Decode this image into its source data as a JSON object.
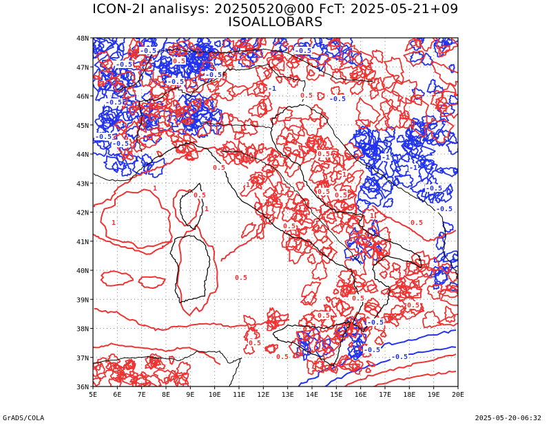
{
  "title_line1": "ICON-2I analisys: 20250520@00 FcT: 2025-05-21+09",
  "title_line2": "ISOALLOBARS",
  "lat_ticks": [
    "48N",
    "47N",
    "46N",
    "45N",
    "44N",
    "43N",
    "42N",
    "41N",
    "40N",
    "39N",
    "38N",
    "37N",
    "36N"
  ],
  "lon_ticks": [
    "5E",
    "6E",
    "7E",
    "8E",
    "9E",
    "10E",
    "11E",
    "12E",
    "13E",
    "14E",
    "15E",
    "16E",
    "17E",
    "18E",
    "19E",
    "20E"
  ],
  "map_extent": {
    "lon": [
      5,
      20
    ],
    "lat": [
      36,
      48
    ]
  },
  "contour_colors": {
    "positive": "#ee3333",
    "negative": "#2233ee",
    "coast": "#000000",
    "grid": "#888888"
  },
  "contour_labels": {
    "positive": [
      "0.5",
      "1",
      "0.5",
      "0.5",
      "1",
      "0.5",
      "0.5",
      "0.5",
      "1",
      "0.5",
      "1",
      "0.5",
      "0.5",
      "0.5",
      "1",
      "1",
      "0.5",
      "0.5",
      "0.5",
      "0.5",
      "0.5"
    ],
    "negative": [
      "-0.5",
      "-0.5",
      "-0.5",
      "-0.5",
      "-0.5",
      "-1",
      "-0.5",
      "-0.5",
      "-0.5",
      "-1",
      "-1",
      "-0.5",
      "-0.5",
      "-0.5",
      "-0.5",
      "-0.5",
      "-0.5"
    ]
  },
  "footer_left": "GrADS/COLA",
  "footer_right": "2025-05-20-06:32"
}
